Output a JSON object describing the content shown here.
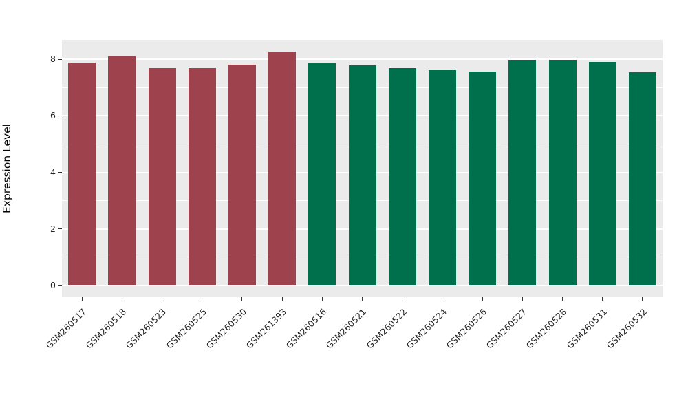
{
  "chart_data": {
    "type": "bar",
    "title": "",
    "xlabel": "",
    "ylabel": "Expression Level",
    "categories": [
      "GSM260517",
      "GSM260518",
      "GSM260523",
      "GSM260525",
      "GSM260530",
      "GSM261393",
      "GSM260516",
      "GSM260521",
      "GSM260522",
      "GSM260524",
      "GSM260526",
      "GSM260527",
      "GSM260528",
      "GSM260531",
      "GSM260532"
    ],
    "values": [
      7.87,
      8.11,
      7.68,
      7.68,
      7.8,
      8.27,
      7.87,
      7.78,
      7.68,
      7.62,
      7.57,
      7.97,
      7.99,
      7.9,
      7.53
    ],
    "colors": [
      "#9E434E",
      "#9E434E",
      "#9E434E",
      "#9E434E",
      "#9E434E",
      "#9E434E",
      "#00704C",
      "#00704C",
      "#00704C",
      "#00704C",
      "#00704C",
      "#00704C",
      "#00704C",
      "#00704C",
      "#00704C"
    ],
    "group_colors": {
      "maroon": "#9E434E",
      "green": "#00704C"
    },
    "ylim": [
      0,
      8.27
    ],
    "yticks": [
      0,
      2,
      4,
      6,
      8
    ],
    "grid": "on",
    "legend": "none",
    "panel_background": "#EBEBEB",
    "gridline_color": "#FFFFFF",
    "tick_color": "#333333"
  }
}
